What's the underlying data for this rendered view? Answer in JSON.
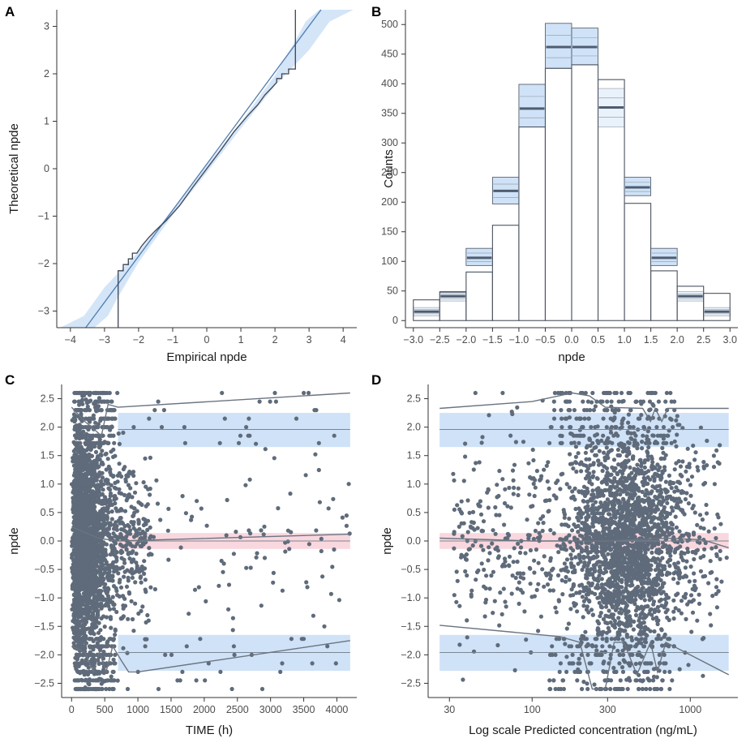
{
  "chart_data": [
    {
      "panel": "A",
      "type": "line",
      "xlabel": "Empirical npde",
      "ylabel": "Theoretical npde",
      "xlim": [
        -4.4,
        4.4
      ],
      "ylim": [
        -3.35,
        3.35
      ],
      "xticks": [
        -4,
        -3,
        -2,
        -1,
        0,
        1,
        2,
        3,
        4
      ],
      "yticks": [
        -3,
        -2,
        -1,
        0,
        1,
        2,
        3
      ],
      "series": [
        {
          "name": "empirical-quantiles",
          "points": [
            [
              -2.6,
              -3.35
            ],
            [
              -2.6,
              -2.15
            ],
            [
              -2.45,
              -2.15
            ],
            [
              -2.45,
              -2.02
            ],
            [
              -2.3,
              -2.02
            ],
            [
              -2.3,
              -1.9
            ],
            [
              -2.18,
              -1.9
            ],
            [
              -2.18,
              -1.78
            ],
            [
              -2.05,
              -1.78
            ],
            [
              -1.9,
              -1.62
            ],
            [
              -1.7,
              -1.45
            ],
            [
              -1.5,
              -1.3
            ],
            [
              -1.2,
              -1.1
            ],
            [
              -0.8,
              -0.78
            ],
            [
              -0.4,
              -0.38
            ],
            [
              0,
              0
            ],
            [
              0.4,
              0.38
            ],
            [
              0.8,
              0.78
            ],
            [
              1.2,
              1.12
            ],
            [
              1.5,
              1.35
            ],
            [
              1.7,
              1.55
            ],
            [
              1.9,
              1.7
            ],
            [
              2.05,
              1.82
            ],
            [
              2.05,
              1.9
            ],
            [
              2.2,
              1.9
            ],
            [
              2.2,
              2.0
            ],
            [
              2.4,
              2.0
            ],
            [
              2.4,
              2.1
            ],
            [
              2.6,
              2.1
            ],
            [
              2.6,
              3.35
            ]
          ]
        },
        {
          "name": "reference-line",
          "points": [
            [
              -3.55,
              -3.35
            ],
            [
              3.35,
              3.35
            ]
          ]
        }
      ],
      "band": {
        "name": "confidence-band",
        "upper": [
          [
            -4.3,
            -3.35
          ],
          [
            -3.6,
            -3.1
          ],
          [
            -3.0,
            -2.5
          ],
          [
            -2.0,
            -1.75
          ],
          [
            -1.0,
            -0.85
          ],
          [
            0,
            0.08
          ],
          [
            1.0,
            0.98
          ],
          [
            2.0,
            1.97
          ],
          [
            2.6,
            2.7
          ],
          [
            2.9,
            3.1
          ],
          [
            3.3,
            3.35
          ]
        ],
        "lower": [
          [
            -3.3,
            -3.35
          ],
          [
            -2.9,
            -3.1
          ],
          [
            -2.6,
            -2.7
          ],
          [
            -2.0,
            -1.97
          ],
          [
            -1.0,
            -0.98
          ],
          [
            0,
            -0.08
          ],
          [
            1.0,
            0.85
          ],
          [
            2.0,
            1.75
          ],
          [
            3.0,
            2.5
          ],
          [
            3.6,
            3.1
          ],
          [
            4.3,
            3.35
          ]
        ]
      }
    },
    {
      "panel": "B",
      "type": "bar",
      "xlabel": "npde",
      "ylabel": "Counts",
      "xlim": [
        -3.15,
        3.15
      ],
      "ylim": [
        -12,
        525
      ],
      "yticks": [
        0,
        50,
        100,
        150,
        200,
        250,
        300,
        350,
        400,
        450,
        500
      ],
      "xticklabels": [
        "−3.0",
        "−2.5",
        "−2.0",
        "−1.5",
        "−1.0",
        "−0.5",
        "0.0",
        "0.5",
        "1.0",
        "1.5",
        "2.0",
        "2.5",
        "3.0"
      ],
      "bins": [
        [
          -3.0,
          -2.5
        ],
        [
          -2.5,
          -2.0
        ],
        [
          -2.0,
          -1.5
        ],
        [
          -1.5,
          -1.0
        ],
        [
          -1.0,
          -0.5
        ],
        [
          -0.5,
          0.0
        ],
        [
          0.0,
          0.5
        ],
        [
          0.5,
          1.0
        ],
        [
          1.0,
          1.5
        ],
        [
          1.5,
          2.0
        ],
        [
          2.0,
          2.5
        ],
        [
          2.5,
          3.0
        ]
      ],
      "observed": [
        35,
        48,
        82,
        161,
        327,
        426,
        432,
        407,
        198,
        84,
        58,
        46
      ],
      "pi_lower": [
        8,
        33,
        93,
        197,
        327,
        426,
        432,
        327,
        211,
        93,
        33,
        8
      ],
      "pi_median": [
        15,
        41,
        106,
        219,
        358,
        462,
        462,
        360,
        225,
        106,
        41,
        15
      ],
      "pi_upper": [
        22,
        49,
        122,
        242,
        399,
        502,
        494,
        392,
        242,
        122,
        49,
        22
      ]
    },
    {
      "panel": "C",
      "type": "scatter",
      "xlabel": "TIME (h)",
      "ylabel": "npde",
      "xlim": [
        -150,
        4300
      ],
      "ylim": [
        -2.75,
        2.75
      ],
      "xticks": [
        0,
        500,
        1000,
        1500,
        2000,
        2500,
        3000,
        3500,
        4000
      ],
      "yticks": [
        2.5,
        2.0,
        1.5,
        1.0,
        0.5,
        0.0,
        -0.5,
        -1.0,
        -1.5,
        -2.0,
        -2.5
      ],
      "bands": [
        {
          "name": "upper-pi",
          "color": "#cfe2f7",
          "x": [
            700,
            4200
          ],
          "y": [
            1.65,
            2.25
          ]
        },
        {
          "name": "median-pi",
          "color": "#f9d7de",
          "x": [
            700,
            4200
          ],
          "y": [
            -0.14,
            0.14
          ]
        },
        {
          "name": "lower-pi",
          "color": "#cfe2f7",
          "x": [
            700,
            4200
          ],
          "y": [
            -2.28,
            -1.65
          ]
        }
      ],
      "reference_lines": [
        1.96,
        0.0,
        -1.96
      ],
      "percentile_lines": [
        {
          "name": "p95",
          "points": [
            [
              0,
              2.35
            ],
            [
              200,
              2.1
            ],
            [
              350,
              1.95
            ],
            [
              450,
              1.85
            ],
            [
              550,
              2.4
            ],
            [
              700,
              2.35
            ],
            [
              4200,
              2.6
            ]
          ]
        },
        {
          "name": "p50",
          "points": [
            [
              0,
              0.25
            ],
            [
              200,
              0.15
            ],
            [
              400,
              0.05
            ],
            [
              700,
              0.0
            ],
            [
              4200,
              0.12
            ]
          ]
        },
        {
          "name": "p05",
          "points": [
            [
              0,
              -1.85
            ],
            [
              200,
              -1.95
            ],
            [
              330,
              -2.3
            ],
            [
              420,
              -1.95
            ],
            [
              520,
              -2.3
            ],
            [
              620,
              -1.85
            ],
            [
              750,
              -2.1
            ],
            [
              860,
              -2.3
            ],
            [
              1000,
              -2.3
            ],
            [
              4200,
              -1.75
            ]
          ]
        }
      ]
    },
    {
      "panel": "D",
      "type": "scatter",
      "xlabel": "Log scale Predicted concentration (ng/mL)",
      "ylabel": "npde",
      "xlim_log": [
        22,
        2000
      ],
      "ylim": [
        -2.75,
        2.75
      ],
      "xticks": [
        30,
        100,
        300,
        1000
      ],
      "yticks": [
        2.5,
        2.0,
        1.5,
        1.0,
        0.5,
        0.0,
        -0.5,
        -1.0,
        -1.5,
        -2.0,
        -2.5
      ],
      "bands": [
        {
          "name": "upper-pi",
          "color": "#cfe2f7",
          "x": [
            26,
            1750
          ],
          "y": [
            1.65,
            2.25
          ]
        },
        {
          "name": "median-pi",
          "color": "#f9d7de",
          "x": [
            26,
            1750
          ],
          "y": [
            -0.14,
            0.14
          ]
        },
        {
          "name": "lower-pi",
          "color": "#cfe2f7",
          "x": [
            26,
            1750
          ],
          "y": [
            -2.28,
            -1.65
          ]
        }
      ],
      "reference_lines": [
        1.96,
        0.0,
        -1.96
      ],
      "percentile_lines": [
        {
          "name": "p95",
          "points": [
            [
              26,
              2.33
            ],
            [
              100,
              2.45
            ],
            [
              180,
              2.6
            ],
            [
              230,
              2.55
            ],
            [
              290,
              2.35
            ],
            [
              500,
              2.33
            ],
            [
              560,
              2.1
            ],
            [
              600,
              2.33
            ],
            [
              660,
              2.1
            ],
            [
              720,
              2.33
            ],
            [
              1750,
              2.33
            ]
          ]
        },
        {
          "name": "p50",
          "points": [
            [
              26,
              0.05
            ],
            [
              100,
              0.0
            ],
            [
              300,
              0.0
            ],
            [
              700,
              0.05
            ],
            [
              1200,
              0.02
            ],
            [
              1750,
              -0.12
            ]
          ]
        },
        {
          "name": "p05",
          "points": [
            [
              26,
              -1.48
            ],
            [
              150,
              -1.68
            ],
            [
              200,
              -1.78
            ],
            [
              240,
              -2.6
            ],
            [
              290,
              -2.6
            ],
            [
              330,
              -1.78
            ],
            [
              380,
              -1.78
            ],
            [
              460,
              -2.35
            ],
            [
              560,
              -1.78
            ],
            [
              620,
              -2.3
            ],
            [
              700,
              -1.78
            ],
            [
              1750,
              -2.35
            ]
          ]
        }
      ]
    }
  ],
  "panel_labels": [
    "A",
    "B",
    "C",
    "D"
  ],
  "colors": {
    "points": "#5f6b7a",
    "line": "#6b7480",
    "blue_band": "#cfe2f7",
    "pink_band": "#f9d7de",
    "bar_edge": "#4a5260"
  }
}
